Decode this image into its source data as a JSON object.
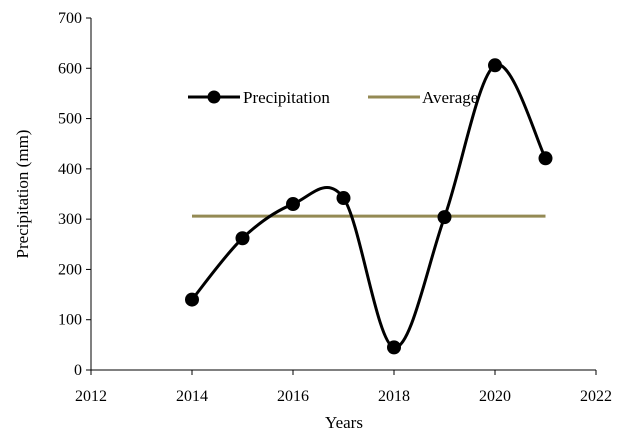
{
  "chart_data": {
    "type": "line",
    "title": "",
    "xlabel": "Years",
    "ylabel": "Precipitation (mm)",
    "xlim": [
      2012,
      2022
    ],
    "ylim": [
      0,
      700
    ],
    "x_ticks": [
      2012,
      2014,
      2016,
      2018,
      2020,
      2022
    ],
    "y_ticks": [
      0,
      100,
      200,
      300,
      400,
      500,
      600,
      700
    ],
    "grid": false,
    "legend_position": "top-center",
    "series": [
      {
        "name": "Precipitation",
        "color": "#000000",
        "marker": "circle",
        "smooth": true,
        "x": [
          2014,
          2015,
          2016,
          2017,
          2018,
          2019,
          2020,
          2021
        ],
        "y": [
          140,
          262,
          330,
          342,
          45,
          304,
          606,
          421
        ]
      },
      {
        "name": "Average",
        "color": "#948A54",
        "marker": "none",
        "smooth": false,
        "x": [
          2014,
          2021
        ],
        "y": [
          306,
          306
        ]
      }
    ]
  }
}
